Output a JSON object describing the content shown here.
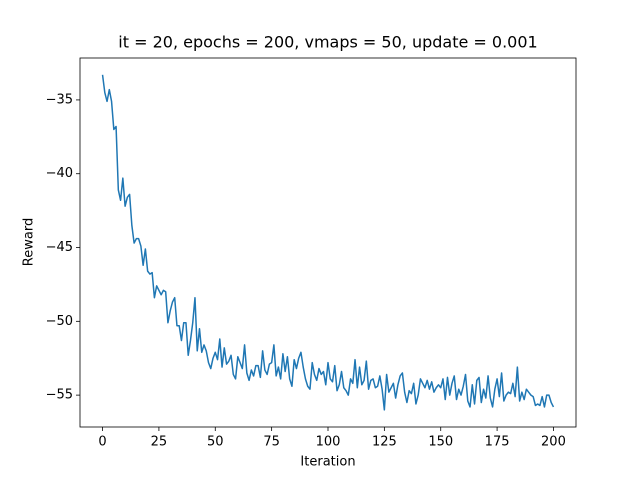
{
  "chart_data": {
    "type": "line",
    "title": "it = 20, epochs = 200, vmaps = 50, update = 0.001",
    "x_label": "Iteration",
    "y_label": "Reward",
    "xlim": [
      -10,
      210
    ],
    "ylim": [
      -57.16,
      -32.16
    ],
    "xticks": [
      0,
      25,
      50,
      75,
      100,
      125,
      150,
      175,
      200
    ],
    "yticks": [
      {
        "value": -55,
        "label": "−55"
      },
      {
        "value": -50,
        "label": "−50"
      },
      {
        "value": -45,
        "label": "−45"
      },
      {
        "value": -40,
        "label": "−40"
      },
      {
        "value": -35,
        "label": "−35"
      }
    ],
    "series": [
      {
        "color": "#1f77b4",
        "x": [
          0,
          1,
          2,
          3,
          4,
          5,
          6,
          7,
          8,
          9,
          10,
          11,
          12,
          13,
          14,
          15,
          16,
          17,
          18,
          19,
          20,
          21,
          22,
          23,
          24,
          25,
          26,
          27,
          28,
          29,
          30,
          31,
          32,
          33,
          34,
          35,
          36,
          37,
          38,
          39,
          40,
          41,
          42,
          43,
          44,
          45,
          46,
          47,
          48,
          49,
          50,
          51,
          52,
          53,
          54,
          55,
          56,
          57,
          58,
          59,
          60,
          61,
          62,
          63,
          64,
          65,
          66,
          67,
          68,
          69,
          70,
          71,
          72,
          73,
          74,
          75,
          76,
          77,
          78,
          79,
          80,
          81,
          82,
          83,
          84,
          85,
          86,
          87,
          88,
          89,
          90,
          91,
          92,
          93,
          94,
          95,
          96,
          97,
          98,
          99,
          100,
          101,
          102,
          103,
          104,
          105,
          106,
          107,
          108,
          109,
          110,
          111,
          112,
          113,
          114,
          115,
          116,
          117,
          118,
          119,
          120,
          121,
          122,
          123,
          124,
          125,
          126,
          127,
          128,
          129,
          130,
          131,
          132,
          133,
          134,
          135,
          136,
          137,
          138,
          139,
          140,
          141,
          142,
          143,
          144,
          145,
          146,
          147,
          148,
          149,
          150,
          151,
          152,
          153,
          154,
          155,
          156,
          157,
          158,
          159,
          160,
          161,
          162,
          163,
          164,
          165,
          166,
          167,
          168,
          169,
          170,
          171,
          172,
          173,
          174,
          175,
          176,
          177,
          178,
          179,
          180,
          181,
          182,
          183,
          184,
          185,
          186,
          187,
          188,
          189,
          190,
          191,
          192,
          193,
          194,
          195,
          196,
          197,
          198,
          199,
          200
        ],
        "values": [
          -33.3,
          -34.5,
          -35.1,
          -34.3,
          -35.1,
          -37.0,
          -36.8,
          -41.1,
          -41.8,
          -40.3,
          -42.2,
          -41.6,
          -41.4,
          -43.5,
          -44.7,
          -44.4,
          -44.4,
          -44.9,
          -46.2,
          -45.1,
          -46.6,
          -46.8,
          -46.7,
          -48.4,
          -47.6,
          -47.9,
          -48.2,
          -47.9,
          -48.0,
          -50.1,
          -49.3,
          -48.7,
          -48.4,
          -50.3,
          -50.3,
          -51.3,
          -50.1,
          -50.1,
          -52.3,
          -51.3,
          -50.1,
          -48.4,
          -52.0,
          -50.5,
          -52.1,
          -51.6,
          -52.0,
          -52.8,
          -53.2,
          -52.5,
          -52.1,
          -52.6,
          -51.2,
          -53.1,
          -51.8,
          -52.9,
          -52.7,
          -52.3,
          -53.6,
          -53.9,
          -52.4,
          -52.8,
          -53.2,
          -51.6,
          -53.5,
          -54.0,
          -53.3,
          -53.7,
          -53.0,
          -53.0,
          -53.8,
          -52.0,
          -53.3,
          -53.6,
          -52.9,
          -52.8,
          -51.6,
          -53.7,
          -53.1,
          -53.9,
          -52.2,
          -53.4,
          -52.4,
          -53.9,
          -54.4,
          -52.6,
          -53.2,
          -52.5,
          -52.1,
          -53.1,
          -53.9,
          -54.4,
          -54.6,
          -52.8,
          -53.6,
          -54.0,
          -53.2,
          -53.6,
          -53.4,
          -54.3,
          -52.8,
          -53.9,
          -54.1,
          -53.0,
          -54.7,
          -54.3,
          -53.4,
          -54.5,
          -54.7,
          -55.0,
          -53.9,
          -54.2,
          -52.6,
          -54.5,
          -53.1,
          -54.3,
          -54.0,
          -52.7,
          -54.6,
          -54.0,
          -53.9,
          -54.5,
          -54.4,
          -53.7,
          -54.6,
          -56.0,
          -53.6,
          -54.8,
          -54.5,
          -54.2,
          -55.2,
          -54.3,
          -53.7,
          -53.5,
          -54.8,
          -55.5,
          -54.7,
          -54.9,
          -54.2,
          -55.6,
          -55.0,
          -53.9,
          -54.2,
          -54.5,
          -54.0,
          -54.6,
          -54.1,
          -54.8,
          -54.5,
          -54.3,
          -54.5,
          -53.9,
          -55.3,
          -53.8,
          -55.0,
          -54.2,
          -53.7,
          -55.3,
          -54.6,
          -55.0,
          -54.4,
          -53.6,
          -55.4,
          -55.8,
          -54.3,
          -55.6,
          -54.0,
          -53.8,
          -55.5,
          -54.6,
          -55.2,
          -53.7,
          -55.2,
          -55.8,
          -54.6,
          -53.9,
          -55.1,
          -53.5,
          -55.4,
          -55.0,
          -54.8,
          -54.9,
          -54.2,
          -55.1,
          -53.1,
          -55.4,
          -54.8,
          -55.3,
          -54.6,
          -54.8,
          -55.0,
          -55.1,
          -55.7,
          -55.6,
          -55.7,
          -55.1,
          -55.8,
          -55.0,
          -55.0,
          -55.5,
          -55.8
        ]
      }
    ]
  }
}
